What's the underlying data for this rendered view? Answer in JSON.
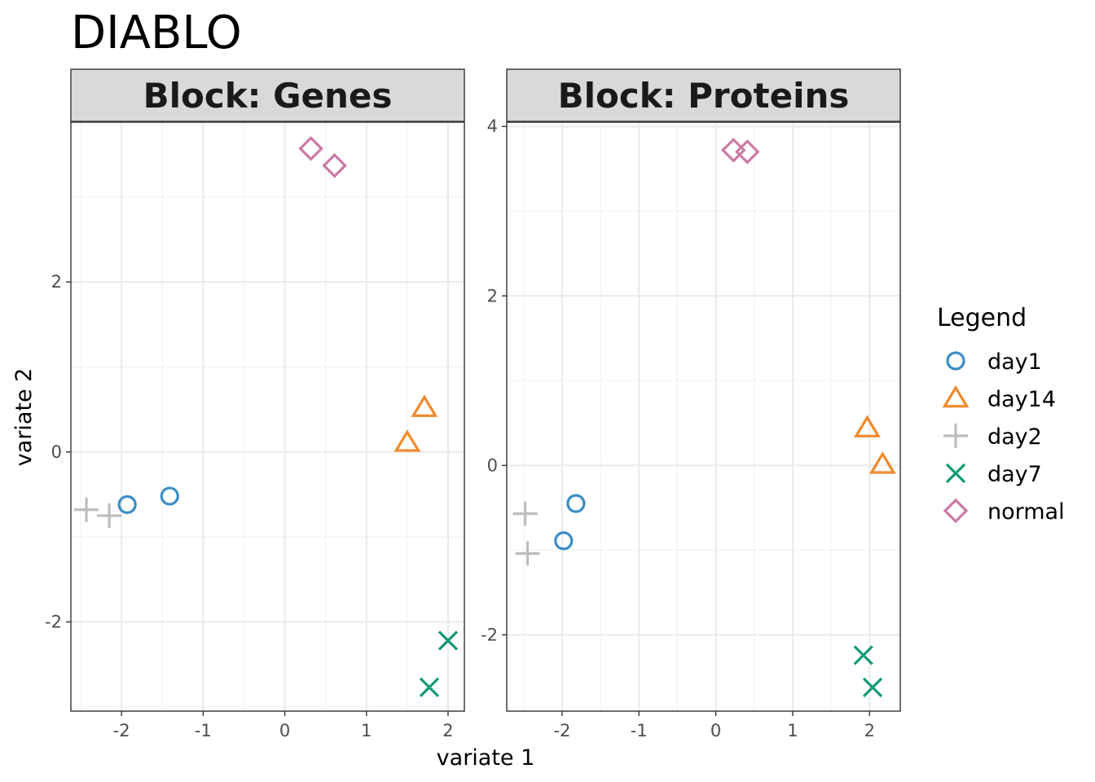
{
  "title": "DIABLO",
  "xlabel": "variate 1",
  "ylabel": "variate 2",
  "legend": {
    "title": "Legend",
    "items": [
      {
        "label": "day1",
        "shape": "circle",
        "color": "#3a8dc5"
      },
      {
        "label": "day14",
        "shape": "triangle",
        "color": "#f08a2c"
      },
      {
        "label": "day2",
        "shape": "plus",
        "color": "#bdbdbd"
      },
      {
        "label": "day7",
        "shape": "cross",
        "color": "#0f9a73"
      },
      {
        "label": "normal",
        "shape": "diamond",
        "color": "#cc79a7"
      }
    ]
  },
  "chart_data": [
    {
      "type": "scatter",
      "panel_title": "Block: Genes",
      "xlim": [
        -2.62,
        2.2
      ],
      "ylim": [
        -3.05,
        3.88
      ],
      "xticks": [
        -2,
        -1,
        0,
        1,
        2
      ],
      "yticks": [
        -2,
        0,
        2
      ],
      "grid": true,
      "series": [
        {
          "name": "day1",
          "points": [
            [
              -1.93,
              -0.62
            ],
            [
              -1.41,
              -0.52
            ]
          ]
        },
        {
          "name": "day14",
          "points": [
            [
              1.71,
              0.52
            ],
            [
              1.5,
              0.11
            ]
          ]
        },
        {
          "name": "day2",
          "points": [
            [
              -2.43,
              -0.68
            ],
            [
              -2.15,
              -0.75
            ]
          ]
        },
        {
          "name": "day7",
          "points": [
            [
              2.0,
              -2.22
            ],
            [
              1.77,
              -2.77
            ]
          ]
        },
        {
          "name": "normal",
          "points": [
            [
              0.32,
              3.57
            ],
            [
              0.61,
              3.37
            ]
          ]
        }
      ]
    },
    {
      "type": "scatter",
      "panel_title": "Block: Proteins",
      "xlim": [
        -2.72,
        2.4
      ],
      "ylim": [
        -2.9,
        4.05
      ],
      "xticks": [
        -2,
        -1,
        0,
        1,
        2
      ],
      "yticks": [
        -2,
        0,
        2,
        4
      ],
      "grid": true,
      "series": [
        {
          "name": "day1",
          "points": [
            [
              -1.82,
              -0.45
            ],
            [
              -1.98,
              -0.89
            ]
          ]
        },
        {
          "name": "day14",
          "points": [
            [
              1.97,
              0.44
            ],
            [
              2.17,
              0.01
            ]
          ]
        },
        {
          "name": "day2",
          "points": [
            [
              -2.48,
              -0.57
            ],
            [
              -2.45,
              -1.04
            ]
          ]
        },
        {
          "name": "day7",
          "points": [
            [
              1.92,
              -2.24
            ],
            [
              2.04,
              -2.62
            ]
          ]
        },
        {
          "name": "normal",
          "points": [
            [
              0.23,
              3.72
            ],
            [
              0.41,
              3.7
            ]
          ]
        }
      ]
    }
  ]
}
